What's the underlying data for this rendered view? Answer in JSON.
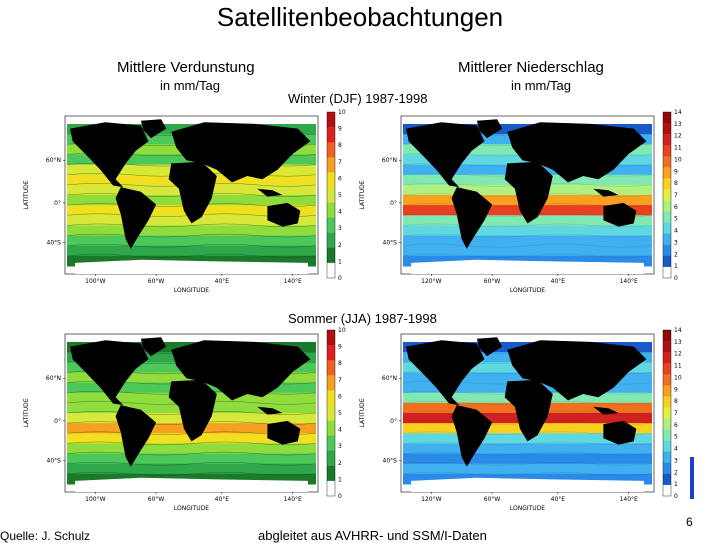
{
  "slide": {
    "title": "Satellitenbeobachtungen",
    "left_heading": "Mittlere Verdunstung",
    "left_unit": "in mm/Tag",
    "right_heading": "Mittlerer Niederschlag",
    "right_unit": "in mm/Tag",
    "winter_caption": "Winter  (DJF)  1987-1998",
    "summer_caption": "Sommer (JJA)  1987-1998",
    "source": "Quelle: J. Schulz",
    "derived": "abgleitet aus AVHRR-  und  SSM/I-Daten",
    "page_number": "6"
  },
  "maps": {
    "evaporation": {
      "ylabel": "LATITUDE",
      "xlabel": "LONGITUDE",
      "lat_ticks": [
        "60°N",
        "0°",
        "40°S"
      ],
      "lon_ticks": [
        "100°W",
        "60°W",
        "40°E",
        "140°E"
      ],
      "colorbar_ticks": [
        "10",
        "9",
        "8",
        "7",
        "6",
        "5",
        "4",
        "3",
        "2",
        "1",
        "0"
      ]
    },
    "precipitation": {
      "ylabel": "LATITUDE",
      "xlabel": "LONGITUDE",
      "lat_ticks": [
        "60°N",
        "0°",
        "40°S"
      ],
      "lon_ticks": [
        "120°W",
        "60°W",
        "40°E",
        "140°E"
      ],
      "colorbar_ticks": [
        "14",
        "13",
        "12",
        "11",
        "10",
        "9",
        "8",
        "7",
        "6",
        "5",
        "4",
        "3",
        "2",
        "1",
        "0"
      ]
    }
  },
  "colors": {
    "evap_scale": [
      "#ffffff",
      "#1a7a2a",
      "#2ea84a",
      "#4cc85a",
      "#8fdc3c",
      "#d8e83a",
      "#f0e020",
      "#f5a020",
      "#f06020",
      "#e02020",
      "#b01010"
    ],
    "precip_scale": [
      "#ffffff",
      "#1a5ac8",
      "#2a8ae8",
      "#40b0f0",
      "#60d8e0",
      "#80e8b0",
      "#b0f080",
      "#e0f040",
      "#f8d020",
      "#f8a020",
      "#f07020",
      "#e84020",
      "#d02020",
      "#b01010",
      "#900808"
    ],
    "land": "#000000"
  }
}
